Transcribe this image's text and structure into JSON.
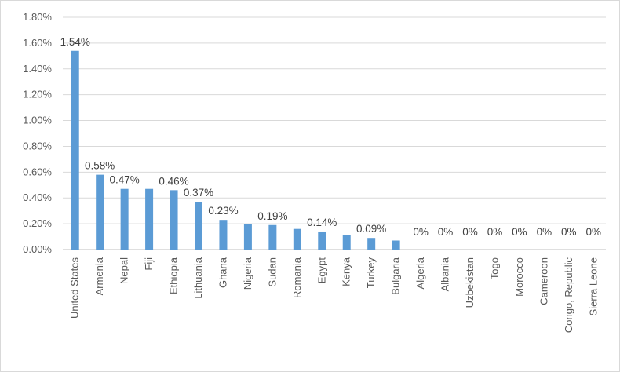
{
  "chart_data": {
    "type": "bar",
    "categories": [
      "United States",
      "Armenia",
      "Nepal",
      "Fiji",
      "Ethiopia",
      "Lithuania",
      "Ghana",
      "Nigeria",
      "Sudan",
      "Romania",
      "Egypt",
      "Kenya",
      "Turkey",
      "Bulgaria",
      "Algeria",
      "Albania",
      "Uzbekistan",
      "Togo",
      "Morocco",
      "Cameroon",
      "Congo, Republic",
      "Sierra Leone"
    ],
    "values": [
      1.54,
      0.58,
      0.47,
      0.47,
      0.46,
      0.37,
      0.23,
      0.2,
      0.19,
      0.16,
      0.14,
      0.11,
      0.09,
      0.07,
      0,
      0,
      0,
      0,
      0,
      0,
      0,
      0
    ],
    "data_labels": [
      "1.54%",
      "0.58%",
      "0.47%",
      "",
      "0.46%",
      "0.37%",
      "0.23%",
      "",
      "0.19%",
      "",
      "0.14%",
      "",
      "0.09%",
      "",
      "0%",
      "0%",
      "0%",
      "0%",
      "0%",
      "0%",
      "0%",
      "0%"
    ],
    "y_ticks": [
      "0.00%",
      "0.20%",
      "0.40%",
      "0.60%",
      "0.80%",
      "1.00%",
      "1.20%",
      "1.40%",
      "1.60%",
      "1.80%"
    ],
    "ylim": [
      0,
      1.8
    ],
    "grid": true,
    "bar_color": "#5b9bd5",
    "title": "",
    "xlabel": "",
    "ylabel": ""
  }
}
